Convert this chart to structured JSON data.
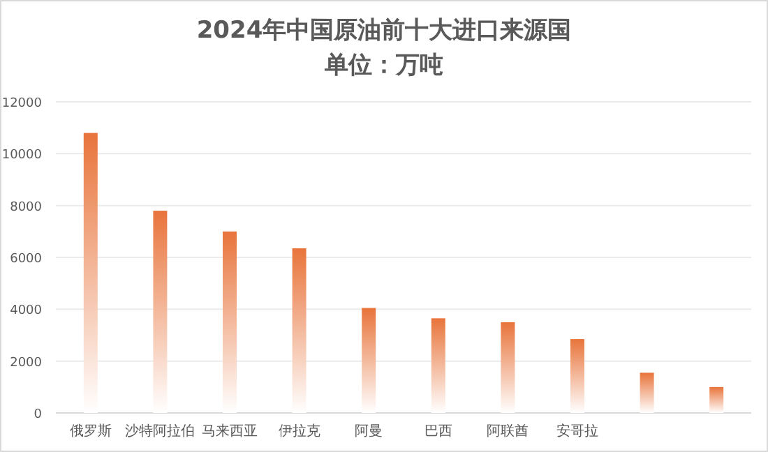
{
  "chart_data": {
    "type": "bar",
    "title": "2024年中国原油前十大进口来源国",
    "subtitle": "单位：万吨",
    "categories": [
      "俄罗斯",
      "沙特阿拉伯",
      "马来西亚",
      "伊拉克",
      "阿曼",
      "巴西",
      "阿联酋",
      "安哥拉",
      null,
      null
    ],
    "values": [
      10800,
      7800,
      7000,
      6350,
      4050,
      3650,
      3500,
      2850,
      1550,
      1000
    ],
    "color": "#e8743b",
    "ylim": [
      0,
      12000
    ],
    "yticks": [
      0,
      2000,
      4000,
      6000,
      8000,
      10000,
      12000
    ],
    "grid": "y"
  }
}
